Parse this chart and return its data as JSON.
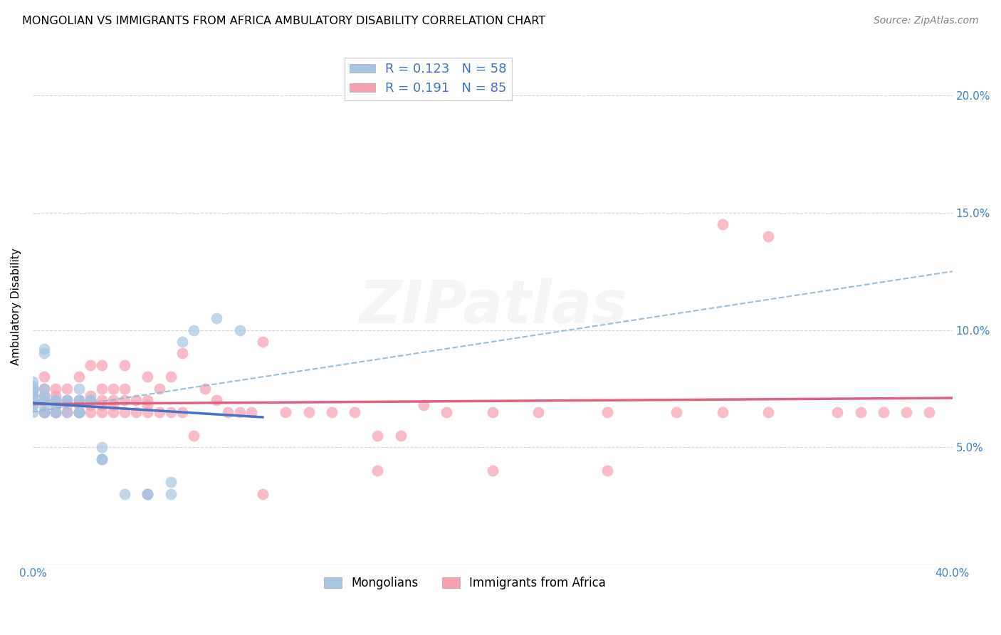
{
  "title": "MONGOLIAN VS IMMIGRANTS FROM AFRICA AMBULATORY DISABILITY CORRELATION CHART",
  "source": "Source: ZipAtlas.com",
  "ylabel": "Ambulatory Disability",
  "xlim": [
    0.0,
    0.4
  ],
  "ylim": [
    0.0,
    0.22
  ],
  "mongolian_R": 0.123,
  "mongolian_N": 58,
  "africa_R": 0.191,
  "africa_N": 85,
  "mongolian_color": "#a8c4e0",
  "africa_color": "#f4a0b0",
  "mongolian_line_color": "#4472c4",
  "africa_line_color": "#e06080",
  "dash_line_color": "#90b8d0",
  "background_color": "#ffffff",
  "grid_color": "#c8d4dc",
  "watermark": "ZIPatlas",
  "mongolian_x": [
    0.0,
    0.0,
    0.0,
    0.0,
    0.0,
    0.0,
    0.0,
    0.0,
    0.0,
    0.0,
    0.0,
    0.0,
    0.0,
    0.0,
    0.0,
    0.0,
    0.0,
    0.0,
    0.0,
    0.0,
    0.005,
    0.005,
    0.005,
    0.005,
    0.005,
    0.005,
    0.005,
    0.005,
    0.005,
    0.01,
    0.01,
    0.01,
    0.01,
    0.01,
    0.015,
    0.015,
    0.015,
    0.02,
    0.02,
    0.02,
    0.02,
    0.02,
    0.02,
    0.025,
    0.025,
    0.03,
    0.03,
    0.03,
    0.03,
    0.04,
    0.05,
    0.05,
    0.06,
    0.06,
    0.065,
    0.07,
    0.08,
    0.09
  ],
  "mongolian_y": [
    0.065,
    0.068,
    0.068,
    0.07,
    0.07,
    0.07,
    0.07,
    0.07,
    0.07,
    0.07,
    0.072,
    0.072,
    0.072,
    0.074,
    0.074,
    0.075,
    0.075,
    0.075,
    0.076,
    0.078,
    0.065,
    0.065,
    0.067,
    0.07,
    0.07,
    0.072,
    0.075,
    0.09,
    0.092,
    0.065,
    0.065,
    0.068,
    0.07,
    0.07,
    0.065,
    0.07,
    0.07,
    0.065,
    0.065,
    0.065,
    0.07,
    0.07,
    0.075,
    0.07,
    0.07,
    0.045,
    0.045,
    0.045,
    0.05,
    0.03,
    0.03,
    0.03,
    0.03,
    0.035,
    0.095,
    0.1,
    0.105,
    0.1
  ],
  "africa_x": [
    0.005,
    0.005,
    0.005,
    0.005,
    0.005,
    0.005,
    0.005,
    0.01,
    0.01,
    0.01,
    0.01,
    0.01,
    0.01,
    0.015,
    0.015,
    0.015,
    0.015,
    0.02,
    0.02,
    0.02,
    0.02,
    0.02,
    0.025,
    0.025,
    0.025,
    0.025,
    0.025,
    0.03,
    0.03,
    0.03,
    0.03,
    0.03,
    0.035,
    0.035,
    0.035,
    0.035,
    0.04,
    0.04,
    0.04,
    0.04,
    0.045,
    0.045,
    0.05,
    0.05,
    0.05,
    0.05,
    0.055,
    0.055,
    0.06,
    0.06,
    0.065,
    0.065,
    0.07,
    0.075,
    0.08,
    0.085,
    0.09,
    0.095,
    0.1,
    0.11,
    0.12,
    0.13,
    0.14,
    0.15,
    0.16,
    0.17,
    0.18,
    0.2,
    0.22,
    0.25,
    0.28,
    0.3,
    0.32,
    0.35,
    0.36,
    0.37,
    0.38,
    0.39,
    0.32,
    0.3,
    0.25,
    0.2,
    0.15,
    0.1,
    0.05
  ],
  "africa_y": [
    0.065,
    0.065,
    0.07,
    0.07,
    0.072,
    0.075,
    0.08,
    0.065,
    0.065,
    0.068,
    0.07,
    0.072,
    0.075,
    0.065,
    0.068,
    0.07,
    0.075,
    0.065,
    0.065,
    0.068,
    0.07,
    0.08,
    0.065,
    0.068,
    0.07,
    0.072,
    0.085,
    0.065,
    0.068,
    0.07,
    0.075,
    0.085,
    0.065,
    0.068,
    0.07,
    0.075,
    0.065,
    0.07,
    0.075,
    0.085,
    0.065,
    0.07,
    0.065,
    0.068,
    0.07,
    0.08,
    0.065,
    0.075,
    0.065,
    0.08,
    0.065,
    0.09,
    0.055,
    0.075,
    0.07,
    0.065,
    0.065,
    0.065,
    0.095,
    0.065,
    0.065,
    0.065,
    0.065,
    0.055,
    0.055,
    0.068,
    0.065,
    0.065,
    0.065,
    0.065,
    0.065,
    0.065,
    0.065,
    0.065,
    0.065,
    0.065,
    0.065,
    0.065,
    0.14,
    0.145,
    0.04,
    0.04,
    0.04,
    0.03,
    0.03
  ]
}
